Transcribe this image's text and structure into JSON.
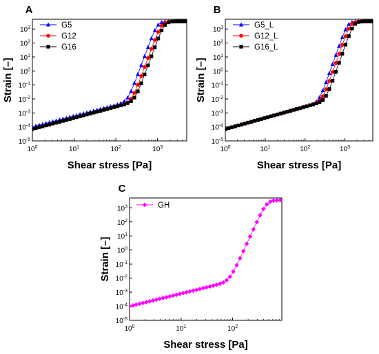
{
  "chart_data": [
    {
      "panel": "A",
      "type": "line",
      "xlabel": "Shear stress [Pa]",
      "ylabel": "Strain [–]",
      "x_scale": "log",
      "y_scale": "log",
      "xlim": [
        1,
        5000
      ],
      "ylim": [
        1e-05,
        5000
      ],
      "x_ticks": [
        {
          "value": 1,
          "base": "10",
          "exp": "0"
        },
        {
          "value": 10,
          "base": "10",
          "exp": "1"
        },
        {
          "value": 100,
          "base": "10",
          "exp": "2"
        },
        {
          "value": 1000,
          "base": "10",
          "exp": "3"
        }
      ],
      "y_ticks": [
        {
          "value": 1e-05,
          "base": "10",
          "exp": "-5"
        },
        {
          "value": 0.0001,
          "base": "10",
          "exp": "-4"
        },
        {
          "value": 0.001,
          "base": "10",
          "exp": "-3"
        },
        {
          "value": 0.01,
          "base": "10",
          "exp": "-2"
        },
        {
          "value": 0.1,
          "base": "10",
          "exp": "-1"
        },
        {
          "value": 1,
          "base": "10",
          "exp": "0"
        },
        {
          "value": 10,
          "base": "10",
          "exp": "1"
        },
        {
          "value": 100,
          "base": "10",
          "exp": "2"
        },
        {
          "value": 1000,
          "base": "10",
          "exp": "3"
        }
      ],
      "legend_position": "top-left",
      "series": [
        {
          "name": "G5",
          "color": "#0000ff",
          "marker": "triangle",
          "gamma0": 0.0001,
          "slope": 0.78,
          "tau_yield": 720,
          "shift": 1.0
        },
        {
          "name": "G12",
          "color": "#ff0000",
          "marker": "circle",
          "gamma0": 7e-05,
          "slope": 0.8,
          "tau_yield": 900,
          "shift": 1.0
        },
        {
          "name": "G16",
          "color": "#000000",
          "marker": "square",
          "gamma0": 7e-05,
          "slope": 0.8,
          "tau_yield": 1050,
          "shift": 1.0
        }
      ]
    },
    {
      "panel": "B",
      "type": "line",
      "xlabel": "Shear stress [Pa]",
      "ylabel": "Strain [–]",
      "x_scale": "log",
      "y_scale": "log",
      "xlim": [
        1,
        5000
      ],
      "ylim": [
        1e-05,
        5000
      ],
      "x_ticks": [
        {
          "value": 1,
          "base": "10",
          "exp": "0"
        },
        {
          "value": 10,
          "base": "10",
          "exp": "1"
        },
        {
          "value": 100,
          "base": "10",
          "exp": "2"
        },
        {
          "value": 1000,
          "base": "10",
          "exp": "3"
        }
      ],
      "y_ticks": [
        {
          "value": 1e-05,
          "base": "10",
          "exp": "-5"
        },
        {
          "value": 0.0001,
          "base": "10",
          "exp": "-4"
        },
        {
          "value": 0.001,
          "base": "10",
          "exp": "-3"
        },
        {
          "value": 0.01,
          "base": "10",
          "exp": "-2"
        },
        {
          "value": 0.1,
          "base": "10",
          "exp": "-1"
        },
        {
          "value": 1,
          "base": "10",
          "exp": "0"
        },
        {
          "value": 10,
          "base": "10",
          "exp": "1"
        },
        {
          "value": 100,
          "base": "10",
          "exp": "2"
        },
        {
          "value": 1000,
          "base": "10",
          "exp": "3"
        }
      ],
      "legend_position": "top-left",
      "series": [
        {
          "name": "G5_L",
          "color": "#0000ff",
          "marker": "triangle",
          "gamma0": 7e-05,
          "slope": 0.8,
          "tau_yield": 850,
          "shift": 1.0
        },
        {
          "name": "G12_L",
          "color": "#ff0000",
          "marker": "circle",
          "gamma0": 7e-05,
          "slope": 0.8,
          "tau_yield": 1000,
          "shift": 1.0
        },
        {
          "name": "G16_L",
          "color": "#000000",
          "marker": "square",
          "gamma0": 7e-05,
          "slope": 0.8,
          "tau_yield": 1200,
          "shift": 1.0
        }
      ]
    },
    {
      "panel": "C",
      "type": "line",
      "xlabel": "Shear stress [Pa]",
      "ylabel": "Strain [–]",
      "x_scale": "log",
      "y_scale": "log",
      "xlim": [
        1,
        900
      ],
      "ylim": [
        1e-05,
        5000
      ],
      "x_ticks": [
        {
          "value": 1,
          "base": "10",
          "exp": "0"
        },
        {
          "value": 10,
          "base": "10",
          "exp": "1"
        },
        {
          "value": 100,
          "base": "10",
          "exp": "2"
        }
      ],
      "y_ticks": [
        {
          "value": 1e-05,
          "base": "10",
          "exp": "-5"
        },
        {
          "value": 0.0001,
          "base": "10",
          "exp": "-4"
        },
        {
          "value": 0.001,
          "base": "10",
          "exp": "-3"
        },
        {
          "value": 0.01,
          "base": "10",
          "exp": "-2"
        },
        {
          "value": 0.1,
          "base": "10",
          "exp": "-1"
        },
        {
          "value": 1,
          "base": "10",
          "exp": "0"
        },
        {
          "value": 10,
          "base": "10",
          "exp": "1"
        },
        {
          "value": 100,
          "base": "10",
          "exp": "2"
        },
        {
          "value": 1000,
          "base": "10",
          "exp": "3"
        }
      ],
      "legend_position": "top-left",
      "series": [
        {
          "name": "GH",
          "color": "#ff00ff",
          "marker": "diamond",
          "gamma0": 0.0001,
          "slope": 0.9,
          "tau_yield": 330,
          "shift": 1.0
        }
      ]
    }
  ]
}
